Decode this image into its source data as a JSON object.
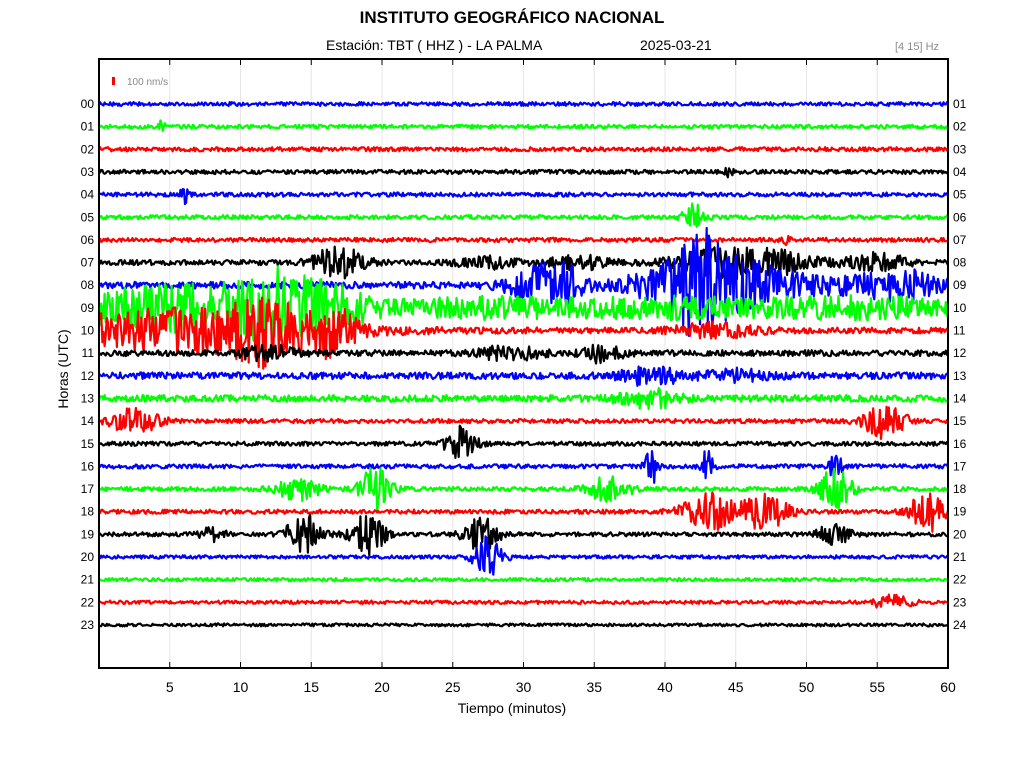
{
  "header": {
    "title": "INSTITUTO GEOGRÁFICO NACIONAL",
    "station": "Estación:  TBT ( HHZ ) - LA PALMA",
    "date": "2025-03-21",
    "band": "[4 15] Hz"
  },
  "chart_data": {
    "type": "line",
    "title": "INSTITUTO GEOGRÁFICO NACIONAL",
    "xlabel": "Tiempo (minutos)",
    "ylabel": "Horas (UTC)",
    "xlim": [
      0,
      60
    ],
    "x_ticks": [
      5,
      10,
      15,
      20,
      25,
      30,
      35,
      40,
      45,
      50,
      55,
      60
    ],
    "grid": true,
    "scale_label": "100 nm/s",
    "scale_color": "#ff0000",
    "colors": [
      "#0000ff",
      "#00ff00",
      "#ff0000",
      "#000000"
    ],
    "series": [
      {
        "left": "00",
        "right": "01",
        "color": "#0000ff",
        "noise": 0.45,
        "events": []
      },
      {
        "left": "01",
        "right": "02",
        "color": "#00ff00",
        "noise": 0.45,
        "events": [
          [
            4.5,
            0.2,
            1.5
          ]
        ]
      },
      {
        "left": "02",
        "right": "03",
        "color": "#ff0000",
        "noise": 0.5,
        "events": []
      },
      {
        "left": "03",
        "right": "04",
        "color": "#000000",
        "noise": 0.5,
        "events": [
          [
            44.5,
            0.2,
            1.2
          ]
        ]
      },
      {
        "left": "04",
        "right": "05",
        "color": "#0000ff",
        "noise": 0.5,
        "events": [
          [
            6,
            0.2,
            2
          ]
        ]
      },
      {
        "left": "05",
        "right": "06",
        "color": "#00ff00",
        "noise": 0.5,
        "events": [
          [
            42,
            0.5,
            4
          ]
        ]
      },
      {
        "left": "06",
        "right": "07",
        "color": "#ff0000",
        "noise": 0.5,
        "events": [
          [
            48.5,
            0.2,
            1.2
          ]
        ]
      },
      {
        "left": "07",
        "right": "08",
        "color": "#000000",
        "noise": 0.6,
        "events": [
          [
            17,
            1.2,
            4
          ],
          [
            27.5,
            1.5,
            1.2
          ],
          [
            34,
            1.5,
            1.5
          ],
          [
            44,
            2.5,
            3
          ],
          [
            48,
            2,
            2
          ],
          [
            55,
            1.5,
            2
          ]
        ]
      },
      {
        "left": "08",
        "right": "09",
        "color": "#0000ff",
        "noise": 0.8,
        "events": [
          [
            31,
            1.5,
            4
          ],
          [
            33,
            1,
            3
          ],
          [
            41,
            2.5,
            5
          ],
          [
            42.5,
            1,
            7
          ],
          [
            45,
            2,
            5
          ],
          [
            50,
            4,
            2
          ],
          [
            57,
            2,
            3
          ]
        ]
      },
      {
        "left": "09",
        "right": "10",
        "color": "#00ff00",
        "noise": 1.0,
        "events": [
          [
            6,
            7,
            5
          ],
          [
            12,
            1.5,
            6
          ],
          [
            16,
            2,
            4
          ],
          [
            27,
            4,
            1.5
          ],
          [
            42,
            8,
            2
          ],
          [
            55,
            4,
            1.5
          ]
        ]
      },
      {
        "left": "10",
        "right": "11",
        "color": "#ff0000",
        "noise": 0.7,
        "events": [
          [
            6,
            7,
            5
          ],
          [
            12,
            1.5,
            6
          ],
          [
            16.5,
            1,
            5
          ],
          [
            43.5,
            2,
            1.5
          ]
        ]
      },
      {
        "left": "11",
        "right": "12",
        "color": "#000000",
        "noise": 0.7,
        "events": [
          [
            12,
            1.5,
            1.5
          ],
          [
            29,
            1.5,
            1.5
          ],
          [
            35.5,
            1,
            2
          ]
        ]
      },
      {
        "left": "12",
        "right": "13",
        "color": "#0000ff",
        "noise": 0.8,
        "events": [
          [
            39,
            1.5,
            2
          ],
          [
            45,
            1.5,
            1.2
          ]
        ]
      },
      {
        "left": "13",
        "right": "14",
        "color": "#00ff00",
        "noise": 0.8,
        "events": [
          [
            39,
            1.5,
            2
          ]
        ]
      },
      {
        "left": "14",
        "right": "15",
        "color": "#ff0000",
        "noise": 0.5,
        "events": [
          [
            2.5,
            1.2,
            3
          ],
          [
            55.5,
            1,
            4
          ]
        ]
      },
      {
        "left": "15",
        "right": "16",
        "color": "#000000",
        "noise": 0.5,
        "events": [
          [
            25.5,
            0.8,
            4
          ]
        ]
      },
      {
        "left": "16",
        "right": "17",
        "color": "#0000ff",
        "noise": 0.5,
        "events": [
          [
            39,
            0.3,
            5
          ],
          [
            43,
            0.3,
            4
          ],
          [
            52,
            0.3,
            4
          ]
        ]
      },
      {
        "left": "17",
        "right": "18",
        "color": "#00ff00",
        "noise": 0.5,
        "events": [
          [
            14,
            1,
            3
          ],
          [
            19.5,
            0.8,
            5
          ],
          [
            36,
            1,
            3
          ],
          [
            52,
            0.8,
            5
          ]
        ]
      },
      {
        "left": "18",
        "right": "19",
        "color": "#ff0000",
        "noise": 0.5,
        "events": [
          [
            43,
            1.2,
            4.5
          ],
          [
            47,
            1.2,
            4
          ],
          [
            58.5,
            0.8,
            5
          ]
        ]
      },
      {
        "left": "19",
        "right": "20",
        "color": "#000000",
        "noise": 0.5,
        "events": [
          [
            8,
            0.6,
            1.5
          ],
          [
            14.5,
            0.8,
            5
          ],
          [
            19,
            0.8,
            5
          ],
          [
            27,
            0.8,
            4
          ],
          [
            52,
            0.8,
            2.5
          ]
        ]
      },
      {
        "left": "20",
        "right": "21",
        "color": "#0000ff",
        "noise": 0.4,
        "events": [
          [
            27.5,
            0.7,
            5
          ]
        ]
      },
      {
        "left": "21",
        "right": "22",
        "color": "#00ff00",
        "noise": 0.4,
        "events": []
      },
      {
        "left": "22",
        "right": "23",
        "color": "#ff0000",
        "noise": 0.4,
        "events": [
          [
            56,
            1,
            1.5
          ]
        ]
      },
      {
        "left": "23",
        "right": "24",
        "color": "#000000",
        "noise": 0.35,
        "events": []
      }
    ]
  }
}
